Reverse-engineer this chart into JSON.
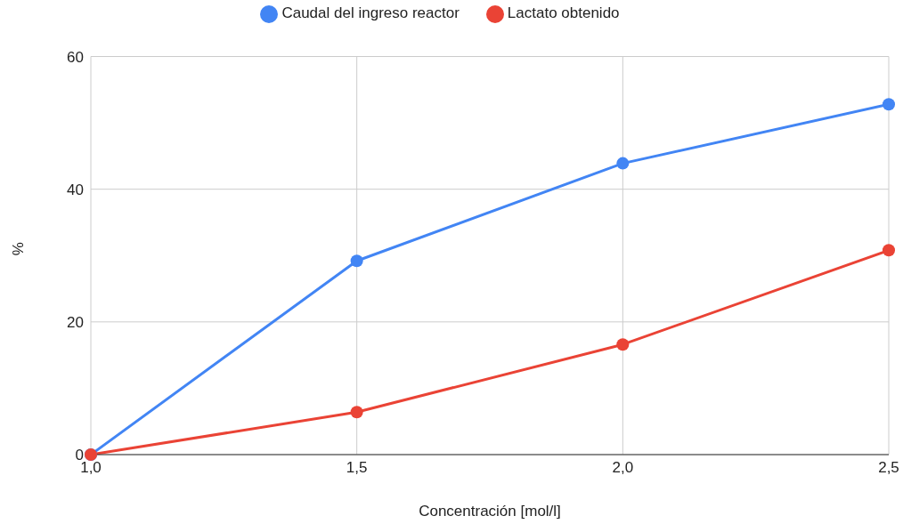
{
  "chart_data": {
    "type": "line",
    "xlabel": "Concentración [mol/l]",
    "ylabel": "%",
    "x": [
      1.0,
      1.5,
      2.0,
      2.5
    ],
    "series": [
      {
        "name": "Caudal del ingreso reactor",
        "color": "#4285f4",
        "values": [
          0,
          29.2,
          43.9,
          52.8
        ]
      },
      {
        "name": "Lactato obtenido",
        "color": "#ea4335",
        "values": [
          0,
          6.4,
          16.6,
          30.8
        ]
      }
    ],
    "xlim": [
      1.0,
      2.5
    ],
    "xticks": [
      {
        "value": 1.0,
        "label": "1,0"
      },
      {
        "value": 1.5,
        "label": "1,5"
      },
      {
        "value": 2.0,
        "label": "2,0"
      },
      {
        "value": 2.5,
        "label": "2,5"
      }
    ],
    "ylim": [
      0,
      60
    ],
    "yticks": [
      0,
      20,
      40,
      60
    ],
    "grid": true,
    "legend": "top",
    "marker": "circle",
    "line_style": "solid"
  }
}
